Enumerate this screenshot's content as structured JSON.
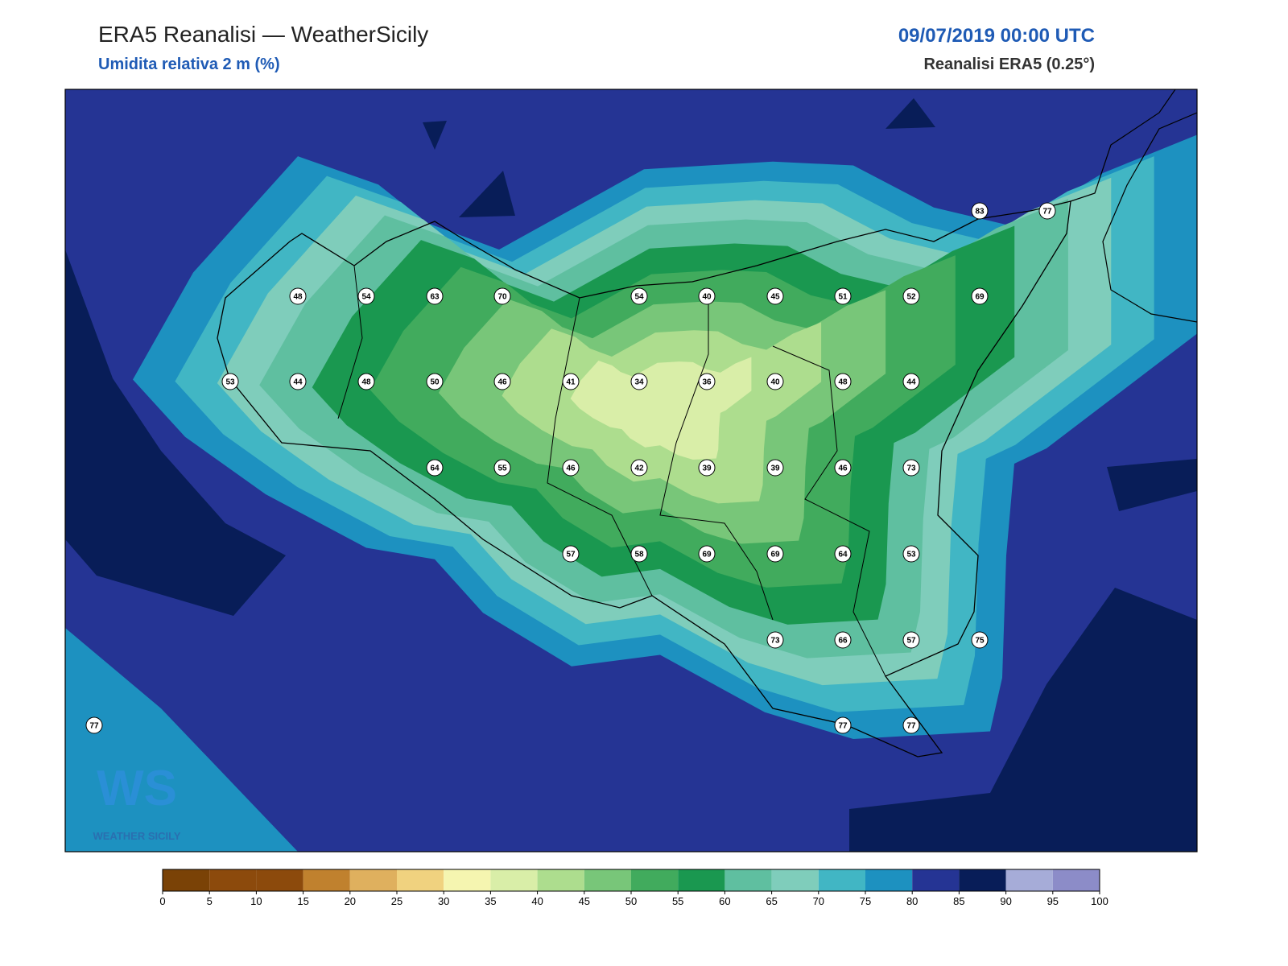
{
  "header": {
    "title": "ERA5 Reanalisi — WeatherSicily",
    "subtitle": "Umidita relativa 2 m (%)",
    "date": "09/07/2019 00:00 UTC",
    "source": "Reanalisi ERA5 (0.25°)"
  },
  "stations": [
    83,
    77,
    48,
    54,
    63,
    70,
    54,
    40,
    45,
    51,
    52,
    69,
    53,
    44,
    48,
    50,
    46,
    41,
    34,
    36,
    40,
    48,
    44,
    64,
    55,
    46,
    42,
    39,
    39,
    46,
    73,
    57,
    58,
    69,
    69,
    64,
    53,
    73,
    66,
    57,
    75,
    77,
    77,
    77
  ],
  "colorbar": {
    "ticks": [
      0,
      5,
      10,
      15,
      20,
      25,
      30,
      35,
      40,
      45,
      50,
      55,
      60,
      65,
      70,
      75,
      80,
      85,
      90,
      95,
      100
    ],
    "colors": [
      "#7a4206",
      "#8c4a0c",
      "#8c4a0c",
      "#c0812e",
      "#dfb05e",
      "#f0d27f",
      "#f5f5b0",
      "#d9eea8",
      "#addd8e",
      "#78c679",
      "#41ab5d",
      "#1a9850",
      "#5fbfa0",
      "#7fcdbb",
      "#41b6c4",
      "#1d91c0",
      "#253494",
      "#081d58",
      "#a6acd8",
      "#8c8cc8"
    ]
  },
  "logo": {
    "mark": "WS",
    "name": "WEATHER SICILY"
  }
}
